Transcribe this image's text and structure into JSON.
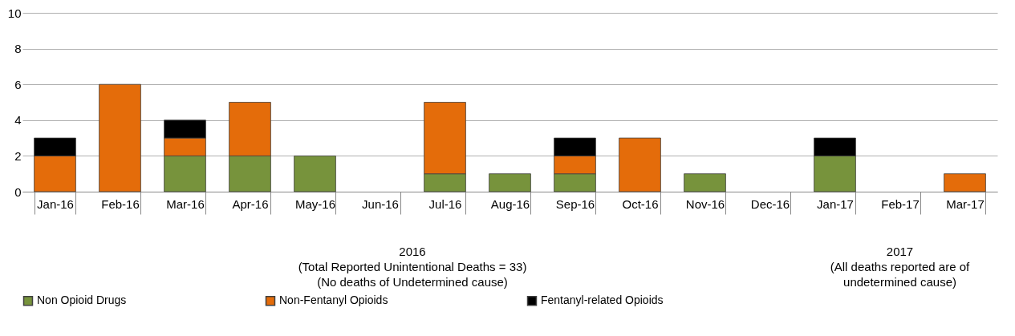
{
  "chart_data": {
    "type": "bar",
    "stacked": true,
    "categories": [
      "Jan-16",
      "Feb-16",
      "Mar-16",
      "Apr-16",
      "May-16",
      "Jun-16",
      "Jul-16",
      "Aug-16",
      "Sep-16",
      "Oct-16",
      "Nov-16",
      "Dec-16",
      "Jan-17",
      "Feb-17",
      "Mar-17"
    ],
    "series": [
      {
        "name": "Non Opioid Drugs",
        "color": "#77933c",
        "values": [
          null,
          null,
          2,
          2,
          2,
          null,
          1,
          1,
          1,
          null,
          1,
          null,
          2,
          null,
          null
        ]
      },
      {
        "name": "Non-Fentanyl Opioids",
        "color": "#e46c0a",
        "values": [
          2,
          6,
          1,
          3,
          null,
          null,
          4,
          null,
          1,
          3,
          null,
          null,
          null,
          null,
          1
        ]
      },
      {
        "name": "Fentanyl-related Opioids",
        "color": "#000000",
        "values": [
          1,
          null,
          1,
          null,
          null,
          null,
          null,
          null,
          1,
          null,
          null,
          null,
          1,
          null,
          null
        ]
      }
    ],
    "ylim": [
      0,
      10
    ],
    "yticks": [
      0,
      2,
      4,
      6,
      8,
      10
    ],
    "grid": "y",
    "legend": "bottom",
    "annotations": [
      "2016\n(Total Reported Unintentional Deaths = 33)\n(No deaths of Undetermined cause)",
      "2017\n(All deaths reported are of\nundetermined cause)"
    ]
  }
}
